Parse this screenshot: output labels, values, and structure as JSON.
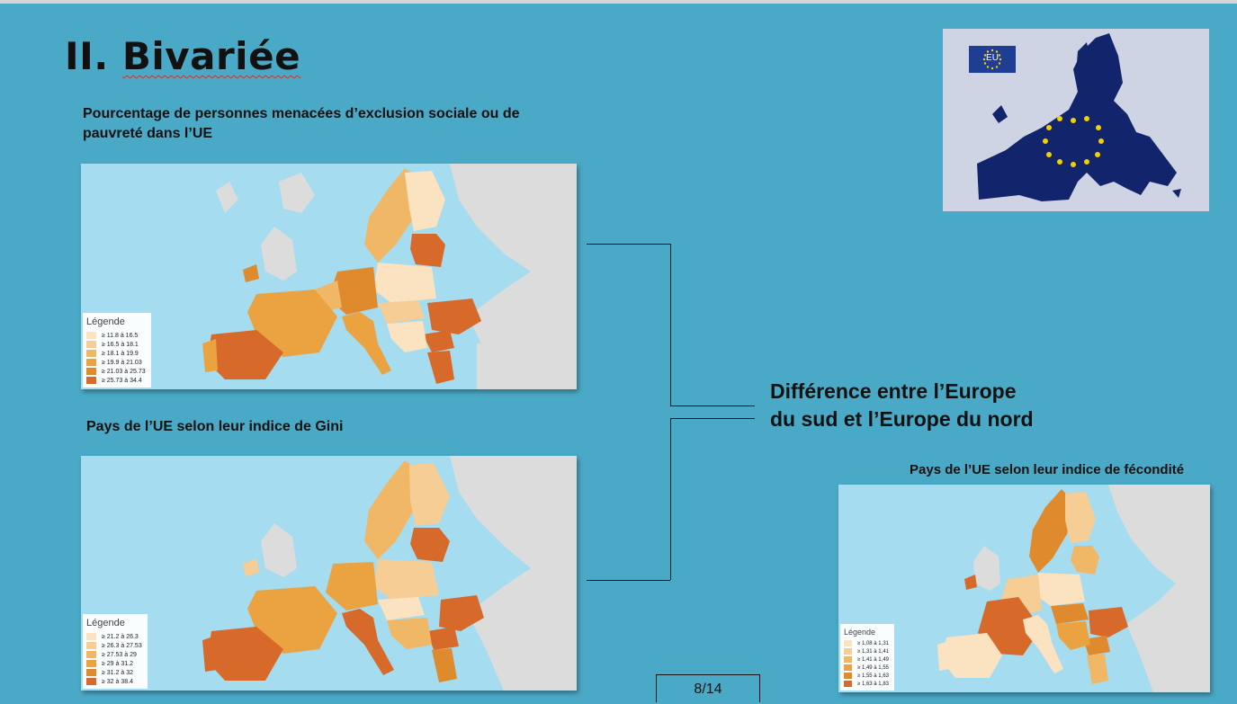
{
  "slide": {
    "title_prefix": "II.",
    "title_word": "Bivariée",
    "page_number": "8/14"
  },
  "maps": {
    "exclusion": {
      "caption": "Pourcentage de personnes menacées d’exclusion sociale ou de pauvreté dans l’UE",
      "legend_title": "Légende",
      "legend": [
        {
          "label": "≥ 11.8 à 16.5",
          "color": "#fbe3c2"
        },
        {
          "label": "≥ 16.5 à 18.1",
          "color": "#f6cd95"
        },
        {
          "label": "≥ 18.1 à 19.9",
          "color": "#f0b866"
        },
        {
          "label": "≥ 19.9 à 21.03",
          "color": "#eaa340"
        },
        {
          "label": "≥ 21.03 à 25.73",
          "color": "#e08a2e"
        },
        {
          "label": "≥ 25.73 à 34.4",
          "color": "#d76a2a"
        }
      ]
    },
    "gini": {
      "caption": "Pays de l’UE selon leur indice de Gini",
      "legend_title": "Légende",
      "legend": [
        {
          "label": "≥ 21.2 à 26.3",
          "color": "#fbe3c2"
        },
        {
          "label": "≥ 26.3 à 27.53",
          "color": "#f6cd95"
        },
        {
          "label": "≥ 27.53 à 29",
          "color": "#f0b866"
        },
        {
          "label": "≥ 29 à 31.2",
          "color": "#eaa340"
        },
        {
          "label": "≥ 31.2 à 32",
          "color": "#e08a2e"
        },
        {
          "label": "≥ 32 à 38.4",
          "color": "#d76a2a"
        }
      ]
    },
    "fecondite": {
      "caption": "Pays de l’UE selon leur indice de fécondité",
      "legend_title": "Légende",
      "legend": [
        {
          "label": "≥ 1,08 à 1,31",
          "color": "#fbe3c2"
        },
        {
          "label": "≥ 1,31 à 1,41",
          "color": "#f6cd95"
        },
        {
          "label": "≥ 1,41 à 1,49",
          "color": "#f0b866"
        },
        {
          "label": "≥ 1,49 à 1,55",
          "color": "#eaa340"
        },
        {
          "label": "≥ 1,55 à 1,63",
          "color": "#e08a2e"
        },
        {
          "label": "≥ 1,63 à 1,83",
          "color": "#d76a2a"
        }
      ]
    }
  },
  "conclusion": {
    "line1": "Différence entre l’Europe",
    "line2": "du sud et l’Europe du nord"
  },
  "eu_image": {
    "flag_label": "EU",
    "flag_color": "#1f3d94",
    "map_color": "#12246b",
    "star_color": "#f5d000"
  },
  "colors": {
    "background": "#4aa9c6",
    "sea": "#a5dcef",
    "non_eu": "#dcdcdc"
  }
}
